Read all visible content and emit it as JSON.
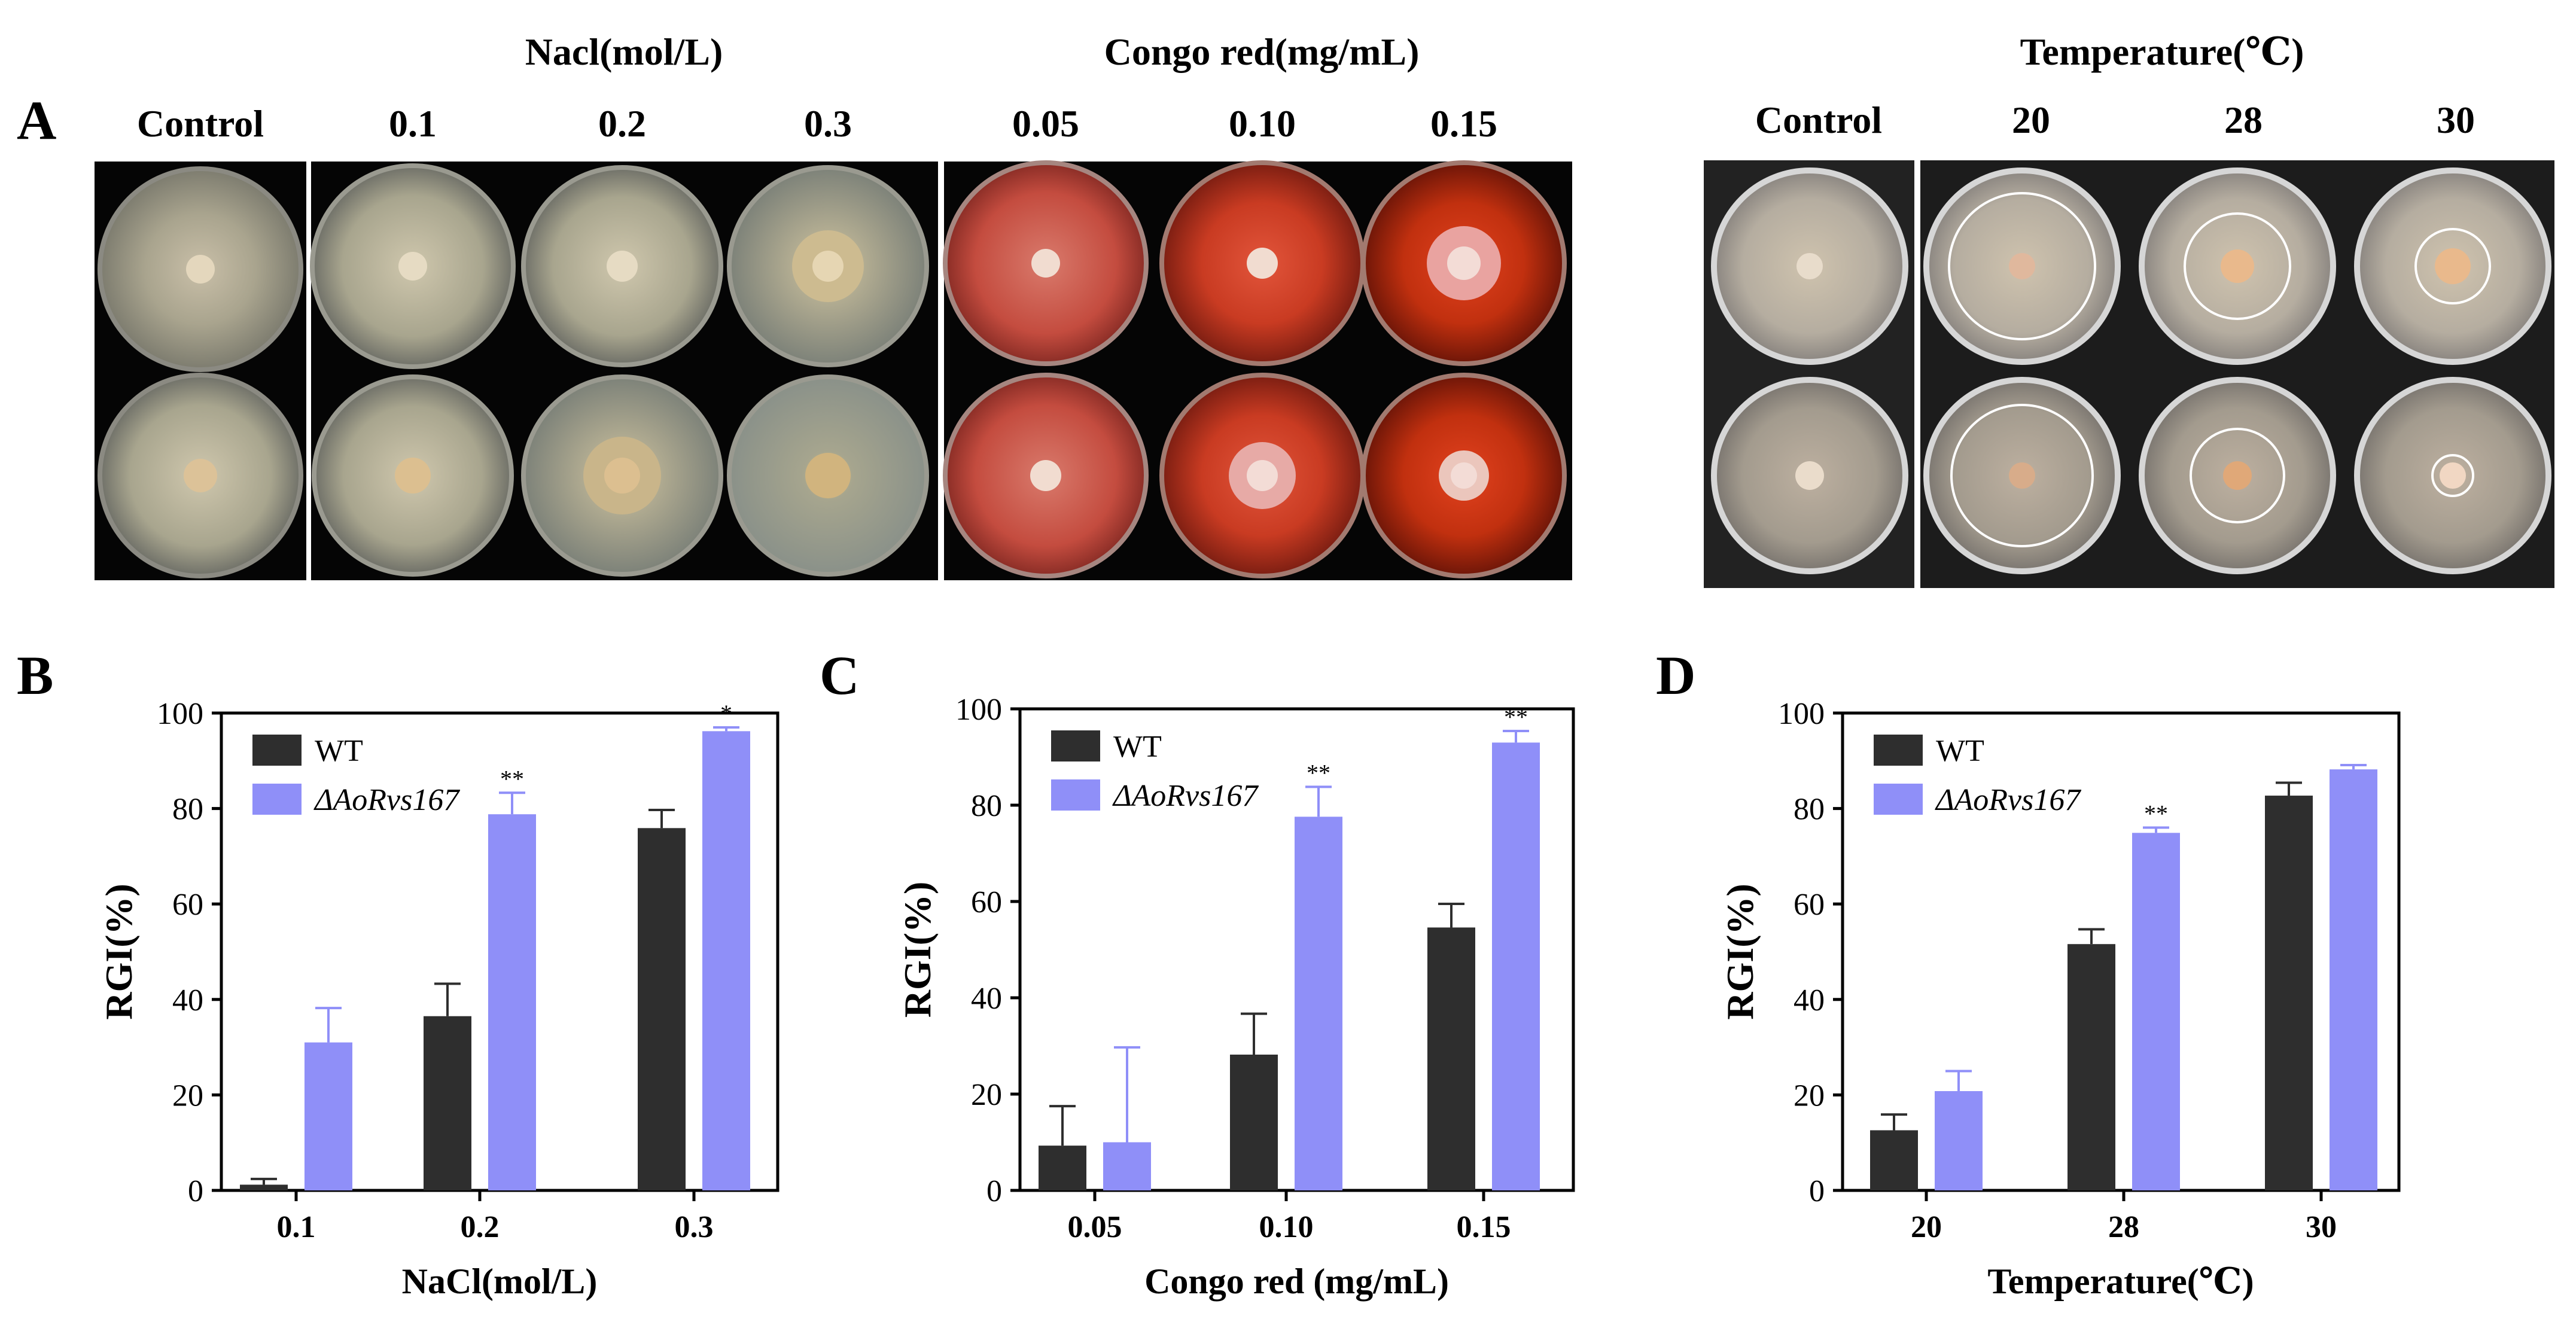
{
  "panel_letters": [
    "A",
    "B",
    "C",
    "D"
  ],
  "panel_a": {
    "nacl_group": {
      "header": "Nacl(mol/L)",
      "control_label": "Control",
      "labels": [
        "0.1",
        "0.2",
        "0.3"
      ]
    },
    "congo_group": {
      "header": "Congo red(mg/mL)",
      "labels": [
        "0.05",
        "0.10",
        "0.15"
      ]
    },
    "temp_group": {
      "header": "Temperature(℃)",
      "control_label": "Control",
      "labels": [
        "20",
        "28",
        "30"
      ]
    }
  },
  "colors": {
    "wt": "#2e2e2e",
    "mutant": "#8f8ff8",
    "plate_bg": "#050505"
  },
  "chart_data": [
    {
      "type": "bar",
      "panel": "B",
      "categories": [
        "0.1",
        "0.2",
        "0.3"
      ],
      "series": [
        {
          "name": "WT",
          "values": [
            1.2,
            36.5,
            75.9
          ],
          "errors": [
            1.2,
            6.8,
            3.8
          ]
        },
        {
          "name": "ΔAoRvs167",
          "values": [
            31.0,
            78.8,
            96.2
          ],
          "errors": [
            7.2,
            4.5,
            0.8
          ]
        }
      ],
      "significance": [
        "",
        "**",
        "*"
      ],
      "xlabel": "NaCl(mol/L)",
      "ylabel": "RGI(%)",
      "ylim": [
        0,
        100
      ],
      "yticks": [
        "0",
        "20",
        "40",
        "60",
        "80",
        "100"
      ]
    },
    {
      "type": "bar",
      "panel": "C",
      "categories": [
        "0.05",
        "0.10",
        "0.15"
      ],
      "series": [
        {
          "name": "WT",
          "values": [
            9.3,
            28.2,
            54.6
          ],
          "errors": [
            8.2,
            8.5,
            4.9
          ]
        },
        {
          "name": "ΔAoRvs167",
          "values": [
            10.0,
            77.6,
            93.0
          ],
          "errors": [
            19.7,
            6.2,
            2.4
          ]
        }
      ],
      "significance": [
        "",
        "**",
        "**"
      ],
      "xlabel": "Congo red (mg/mL)",
      "ylabel": "RGI(%)",
      "ylim": [
        0,
        100
      ],
      "yticks": [
        "0",
        "20",
        "40",
        "60",
        "80",
        "100"
      ]
    },
    {
      "type": "bar",
      "panel": "D",
      "categories": [
        "20",
        "28",
        "30"
      ],
      "series": [
        {
          "name": "WT",
          "values": [
            12.6,
            51.6,
            82.7
          ],
          "errors": [
            3.3,
            3.1,
            2.7
          ]
        },
        {
          "name": "ΔAoRvs167",
          "values": [
            20.8,
            74.9,
            88.2
          ],
          "errors": [
            4.2,
            1.1,
            0.9
          ]
        }
      ],
      "significance": [
        "",
        "**",
        ""
      ],
      "xlabel": "Temperature(℃)",
      "ylabel": "RGI(%)",
      "ylim": [
        0,
        100
      ],
      "yticks": [
        "0",
        "20",
        "40",
        "60",
        "80",
        "100"
      ]
    }
  ]
}
